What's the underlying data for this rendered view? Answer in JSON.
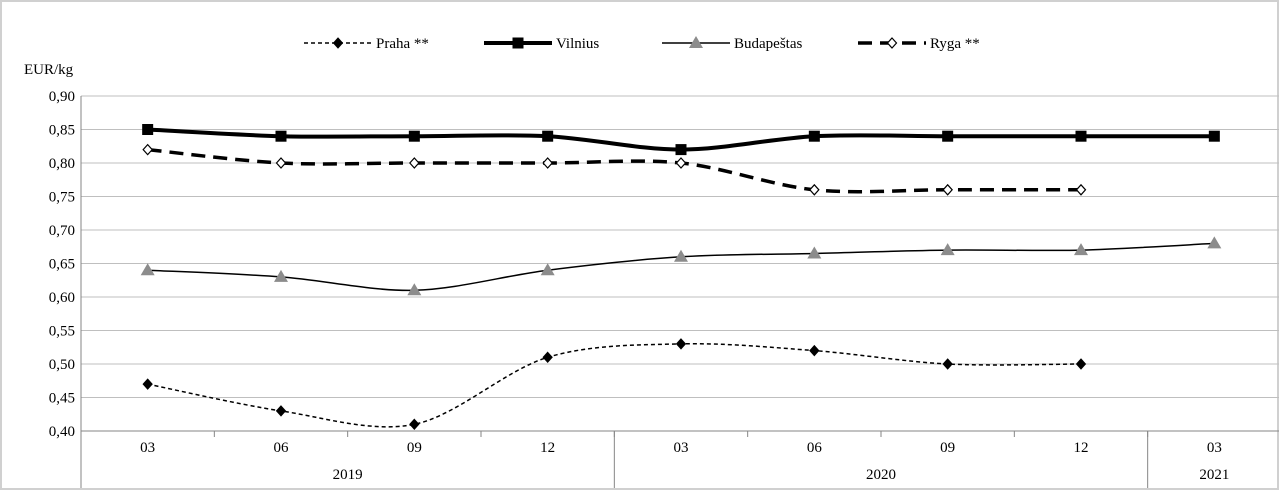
{
  "chart_data": {
    "type": "line",
    "ylabel": "EUR/kg",
    "ylim": [
      0.4,
      0.9
    ],
    "ytick_step": 0.05,
    "y_tick_labels": [
      "0,40",
      "0,45",
      "0,50",
      "0,55",
      "0,60",
      "0,65",
      "0,70",
      "0,75",
      "0,80",
      "0,85",
      "0,90"
    ],
    "categories": [
      "03",
      "06",
      "09",
      "12",
      "03",
      "06",
      "09",
      "12",
      "03"
    ],
    "year_groups": [
      {
        "label": "2019",
        "span": 4
      },
      {
        "label": "2020",
        "span": 4
      },
      {
        "label": "2021",
        "span": 1
      }
    ],
    "grid": true,
    "legend_position": "top",
    "series": [
      {
        "name": "Praha **",
        "style": "dotted",
        "marker": "diamond-filled",
        "color": "#000000",
        "values": [
          0.47,
          0.43,
          0.41,
          0.51,
          0.53,
          0.52,
          0.5,
          0.5,
          null
        ]
      },
      {
        "name": "Vilnius",
        "style": "thick",
        "marker": "square",
        "color": "#000000",
        "values": [
          0.85,
          0.84,
          0.84,
          0.84,
          0.82,
          0.84,
          0.84,
          0.84,
          0.84
        ]
      },
      {
        "name": "Budapeštas",
        "style": "solid",
        "marker": "triangle",
        "color": "#000000",
        "marker_color": "#8c8c8c",
        "values": [
          0.64,
          0.63,
          0.61,
          0.64,
          0.66,
          0.665,
          0.67,
          0.67,
          0.68
        ]
      },
      {
        "name": "Ryga **",
        "style": "dashed",
        "marker": "diamond-open",
        "color": "#000000",
        "values": [
          0.82,
          0.8,
          0.8,
          0.8,
          0.8,
          0.76,
          0.76,
          0.76,
          null
        ]
      }
    ]
  }
}
